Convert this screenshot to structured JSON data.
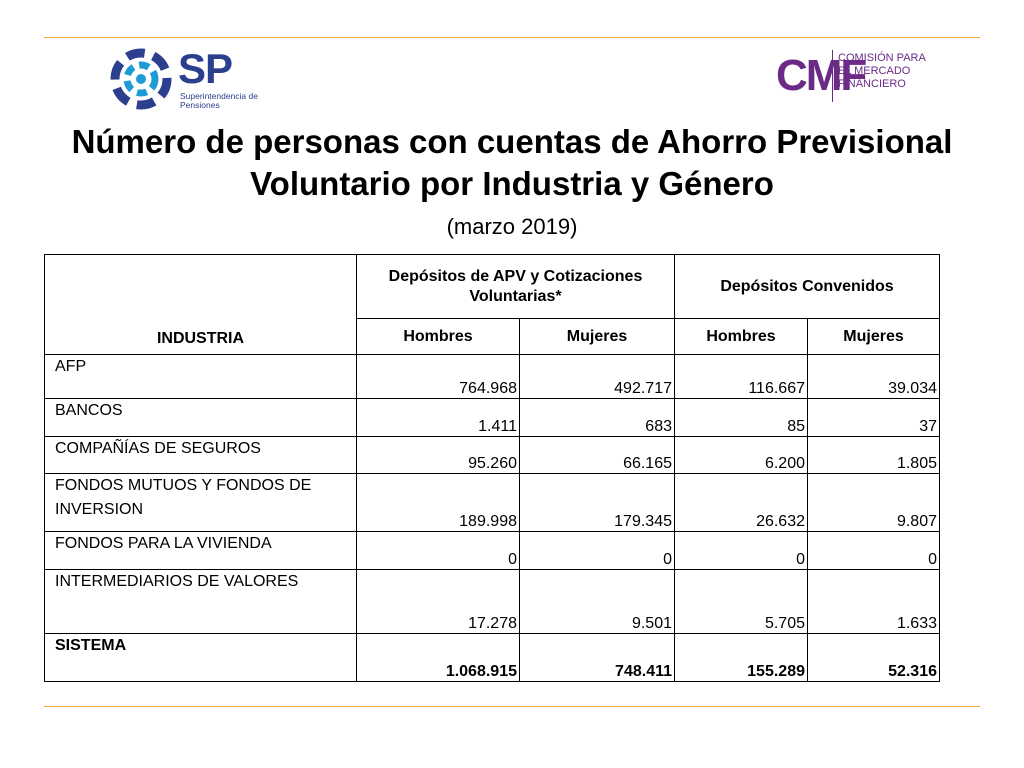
{
  "logos": {
    "sp": {
      "mark": "SP",
      "subtitle": "Superintendencia de Pensiones"
    },
    "cmf": {
      "mark": "CMF",
      "subtitle": "COMISIÓN PARA EL MERCADO FINANCIERO"
    }
  },
  "title": "Número de personas con cuentas de Ahorro Previsional Voluntario por Industria y Género",
  "subtitle": "(marzo 2019)",
  "table": {
    "industria_header": "INDUSTRIA",
    "group1": "Depósitos de APV y Cotizaciones Voluntarias*",
    "group2": "Depósitos Convenidos",
    "subheaders": [
      "Hombres",
      "Mujeres",
      "Hombres",
      "Mujeres"
    ],
    "rows": [
      {
        "label": "AFP",
        "values": [
          "764.968",
          "492.717",
          "116.667",
          "39.034"
        ]
      },
      {
        "label": "BANCOS",
        "values": [
          "1.411",
          "683",
          "85",
          "37"
        ]
      },
      {
        "label": "COMPAÑÍAS DE SEGUROS",
        "values": [
          "95.260",
          "66.165",
          "6.200",
          "1.805"
        ]
      },
      {
        "label": "FONDOS MUTUOS Y FONDOS DE INVERSION",
        "values": [
          "189.998",
          "179.345",
          "26.632",
          "9.807"
        ]
      },
      {
        "label": "FONDOS PARA LA VIVIENDA",
        "values": [
          "0",
          "0",
          "0",
          "0"
        ]
      },
      {
        "label": "INTERMEDIARIOS DE VALORES",
        "values": [
          "17.278",
          "9.501",
          "5.705",
          "1.633"
        ]
      }
    ],
    "total": {
      "label": "SISTEMA",
      "values": [
        "1.068.915",
        "748.411",
        "155.289",
        "52.316"
      ]
    }
  }
}
